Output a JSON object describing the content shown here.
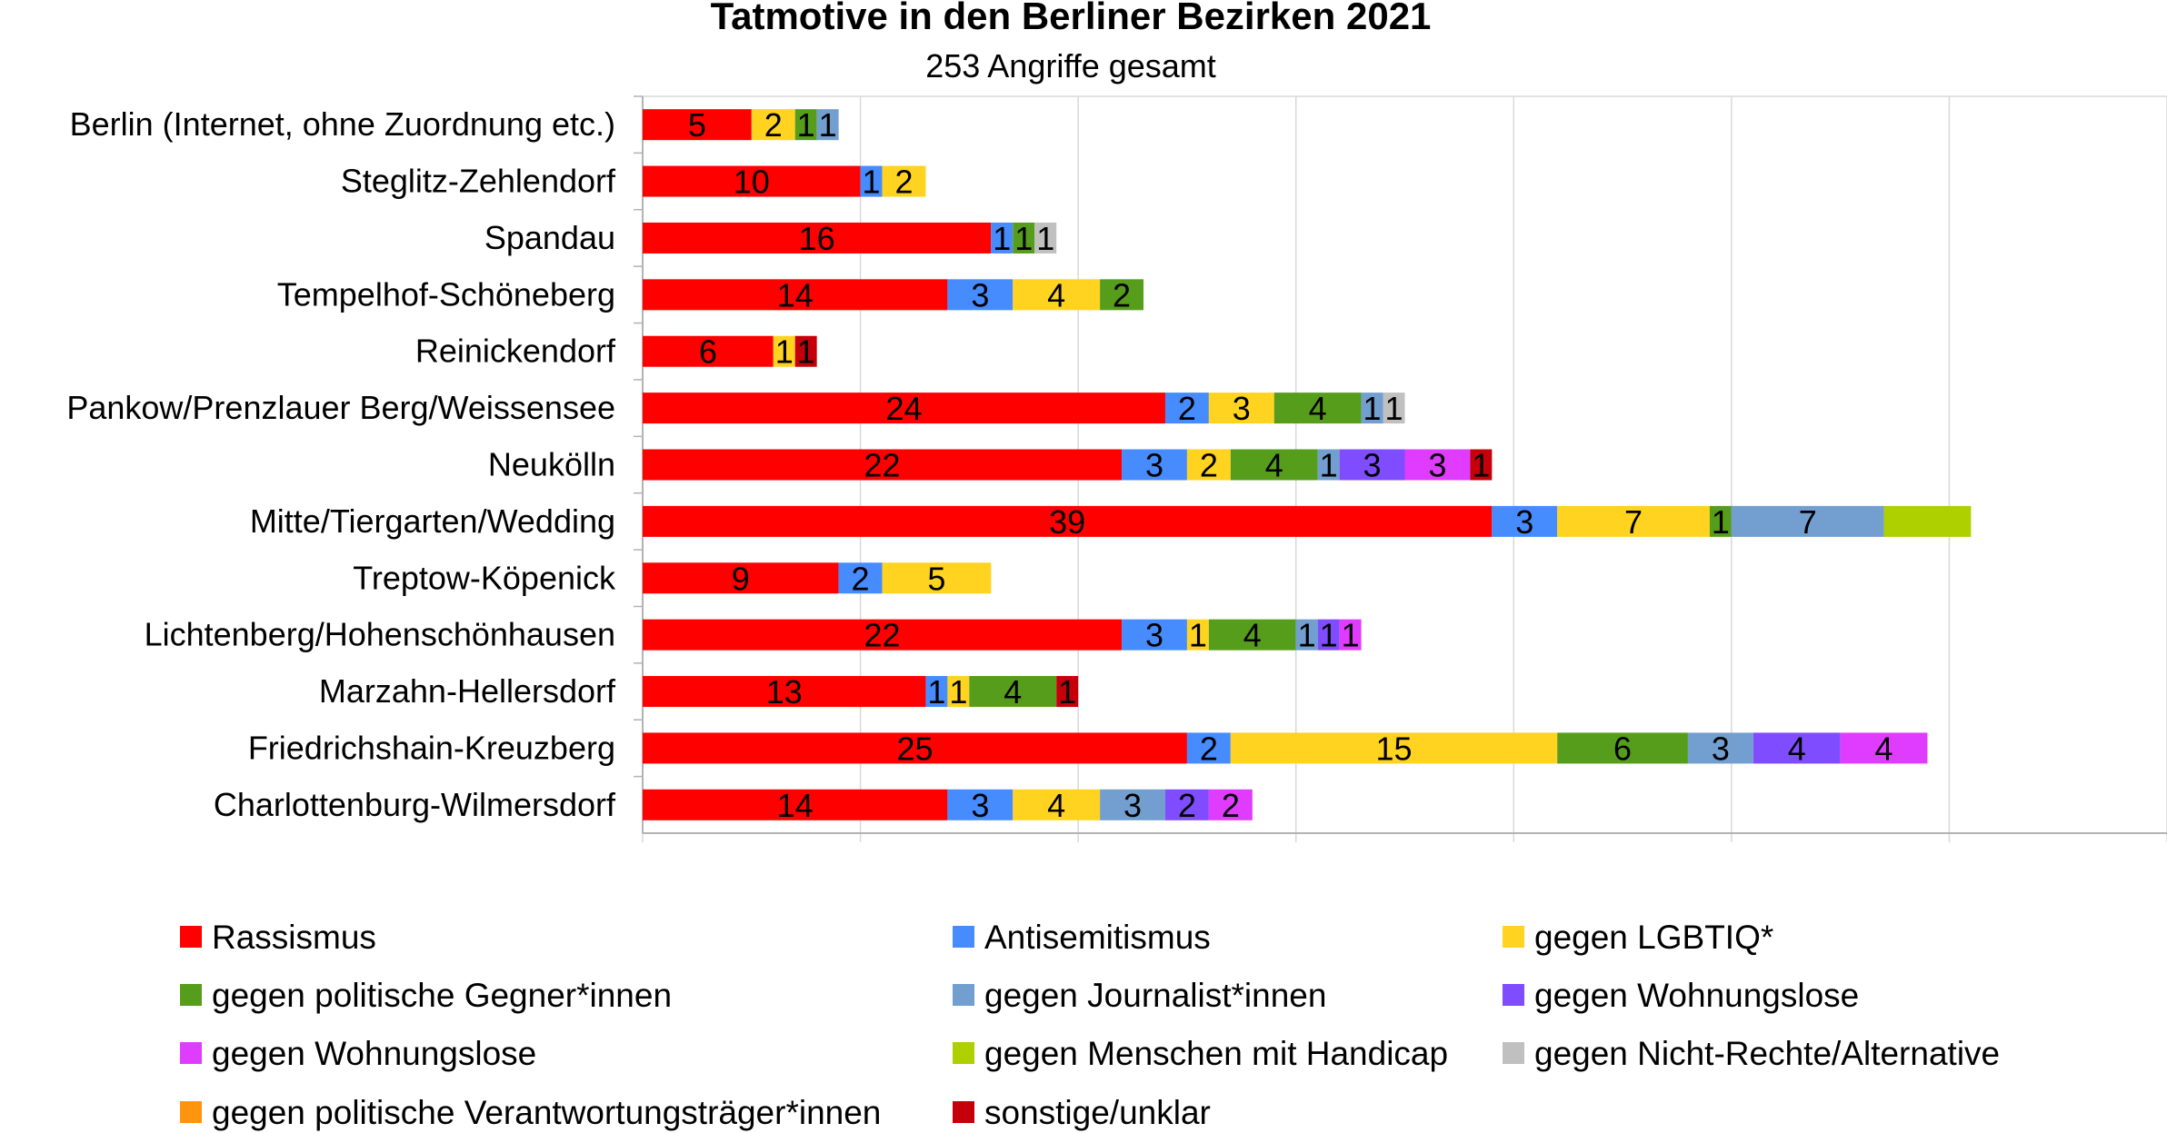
{
  "chart_data": {
    "type": "bar",
    "orientation": "horizontal",
    "stacked": true,
    "title": "Tatmotive in den Berliner Bezirken 2021",
    "subtitle": "253 Angriffe gesamt",
    "xlim": [
      0,
      70
    ],
    "x_grid_step": 10,
    "grid": true,
    "x_tick_labels_shown": false,
    "legend_position": "bottom",
    "categories": [
      "Berlin (Internet, ohne Zuordnung etc.)",
      "Steglitz-Zehlendorf",
      "Spandau",
      "Tempelhof-Schöneberg",
      "Reinickendorf",
      "Pankow/Prenzlauer Berg/Weissensee",
      "Neukölln",
      "Mitte/Tiergarten/Wedding",
      "Treptow-Köpenick",
      "Lichtenberg/Hohenschönhausen",
      "Marzahn-Hellersdorf",
      "Friedrichshain-Kreuzberg",
      "Charlottenburg-Wilmersdorf"
    ],
    "series": [
      {
        "name": "Rassismus",
        "color": "#ff0000",
        "values": [
          5,
          10,
          16,
          14,
          6,
          24,
          22,
          39,
          9,
          22,
          13,
          25,
          14
        ]
      },
      {
        "name": "Antisemitismus",
        "color": "#468cff",
        "values": [
          0,
          1,
          1,
          3,
          0,
          2,
          3,
          3,
          2,
          3,
          1,
          2,
          3
        ]
      },
      {
        "name": "gegen LGBTIQ*",
        "color": "#ffd320",
        "values": [
          2,
          2,
          0,
          4,
          1,
          3,
          2,
          7,
          5,
          1,
          1,
          15,
          4
        ]
      },
      {
        "name": "gegen politische Gegner*innen",
        "color": "#579d1c",
        "values": [
          1,
          0,
          1,
          2,
          0,
          4,
          4,
          1,
          0,
          4,
          4,
          6,
          0
        ]
      },
      {
        "name": "gegen Journalist*innen",
        "color": "#729fcf",
        "values": [
          1,
          0,
          0,
          0,
          0,
          1,
          1,
          7,
          0,
          1,
          0,
          3,
          3
        ]
      },
      {
        "name": "gegen Wohnungslose",
        "color": "#7f4dff",
        "values": [
          0,
          0,
          0,
          0,
          0,
          0,
          3,
          0,
          0,
          1,
          0,
          4,
          2
        ]
      },
      {
        "name": "gegen Wohnungslose",
        "color": "#e03cff",
        "values": [
          0,
          0,
          0,
          0,
          0,
          0,
          3,
          0,
          0,
          1,
          0,
          4,
          2
        ]
      },
      {
        "name": "gegen Menschen mit Handicap",
        "color": "#aecf00",
        "values": [
          0,
          0,
          0,
          0,
          0,
          0,
          0,
          4,
          0,
          0,
          0,
          0,
          0
        ],
        "labels_hidden": true
      },
      {
        "name": "gegen Nicht-Rechte/Alternative",
        "color": "#c0c0c0",
        "values": [
          0,
          0,
          1,
          0,
          0,
          1,
          0,
          0,
          0,
          0,
          0,
          0,
          0
        ]
      },
      {
        "name": "gegen politische Verantwortungsträger*innen",
        "color": "#ff950e",
        "values": [
          0,
          0,
          0,
          0,
          0,
          0,
          0,
          0,
          0,
          0,
          0,
          0,
          0
        ]
      },
      {
        "name": "sonstige/unklar",
        "color": "#c5000b",
        "values": [
          0,
          0,
          0,
          0,
          1,
          0,
          1,
          0,
          0,
          0,
          1,
          0,
          0
        ]
      }
    ]
  }
}
